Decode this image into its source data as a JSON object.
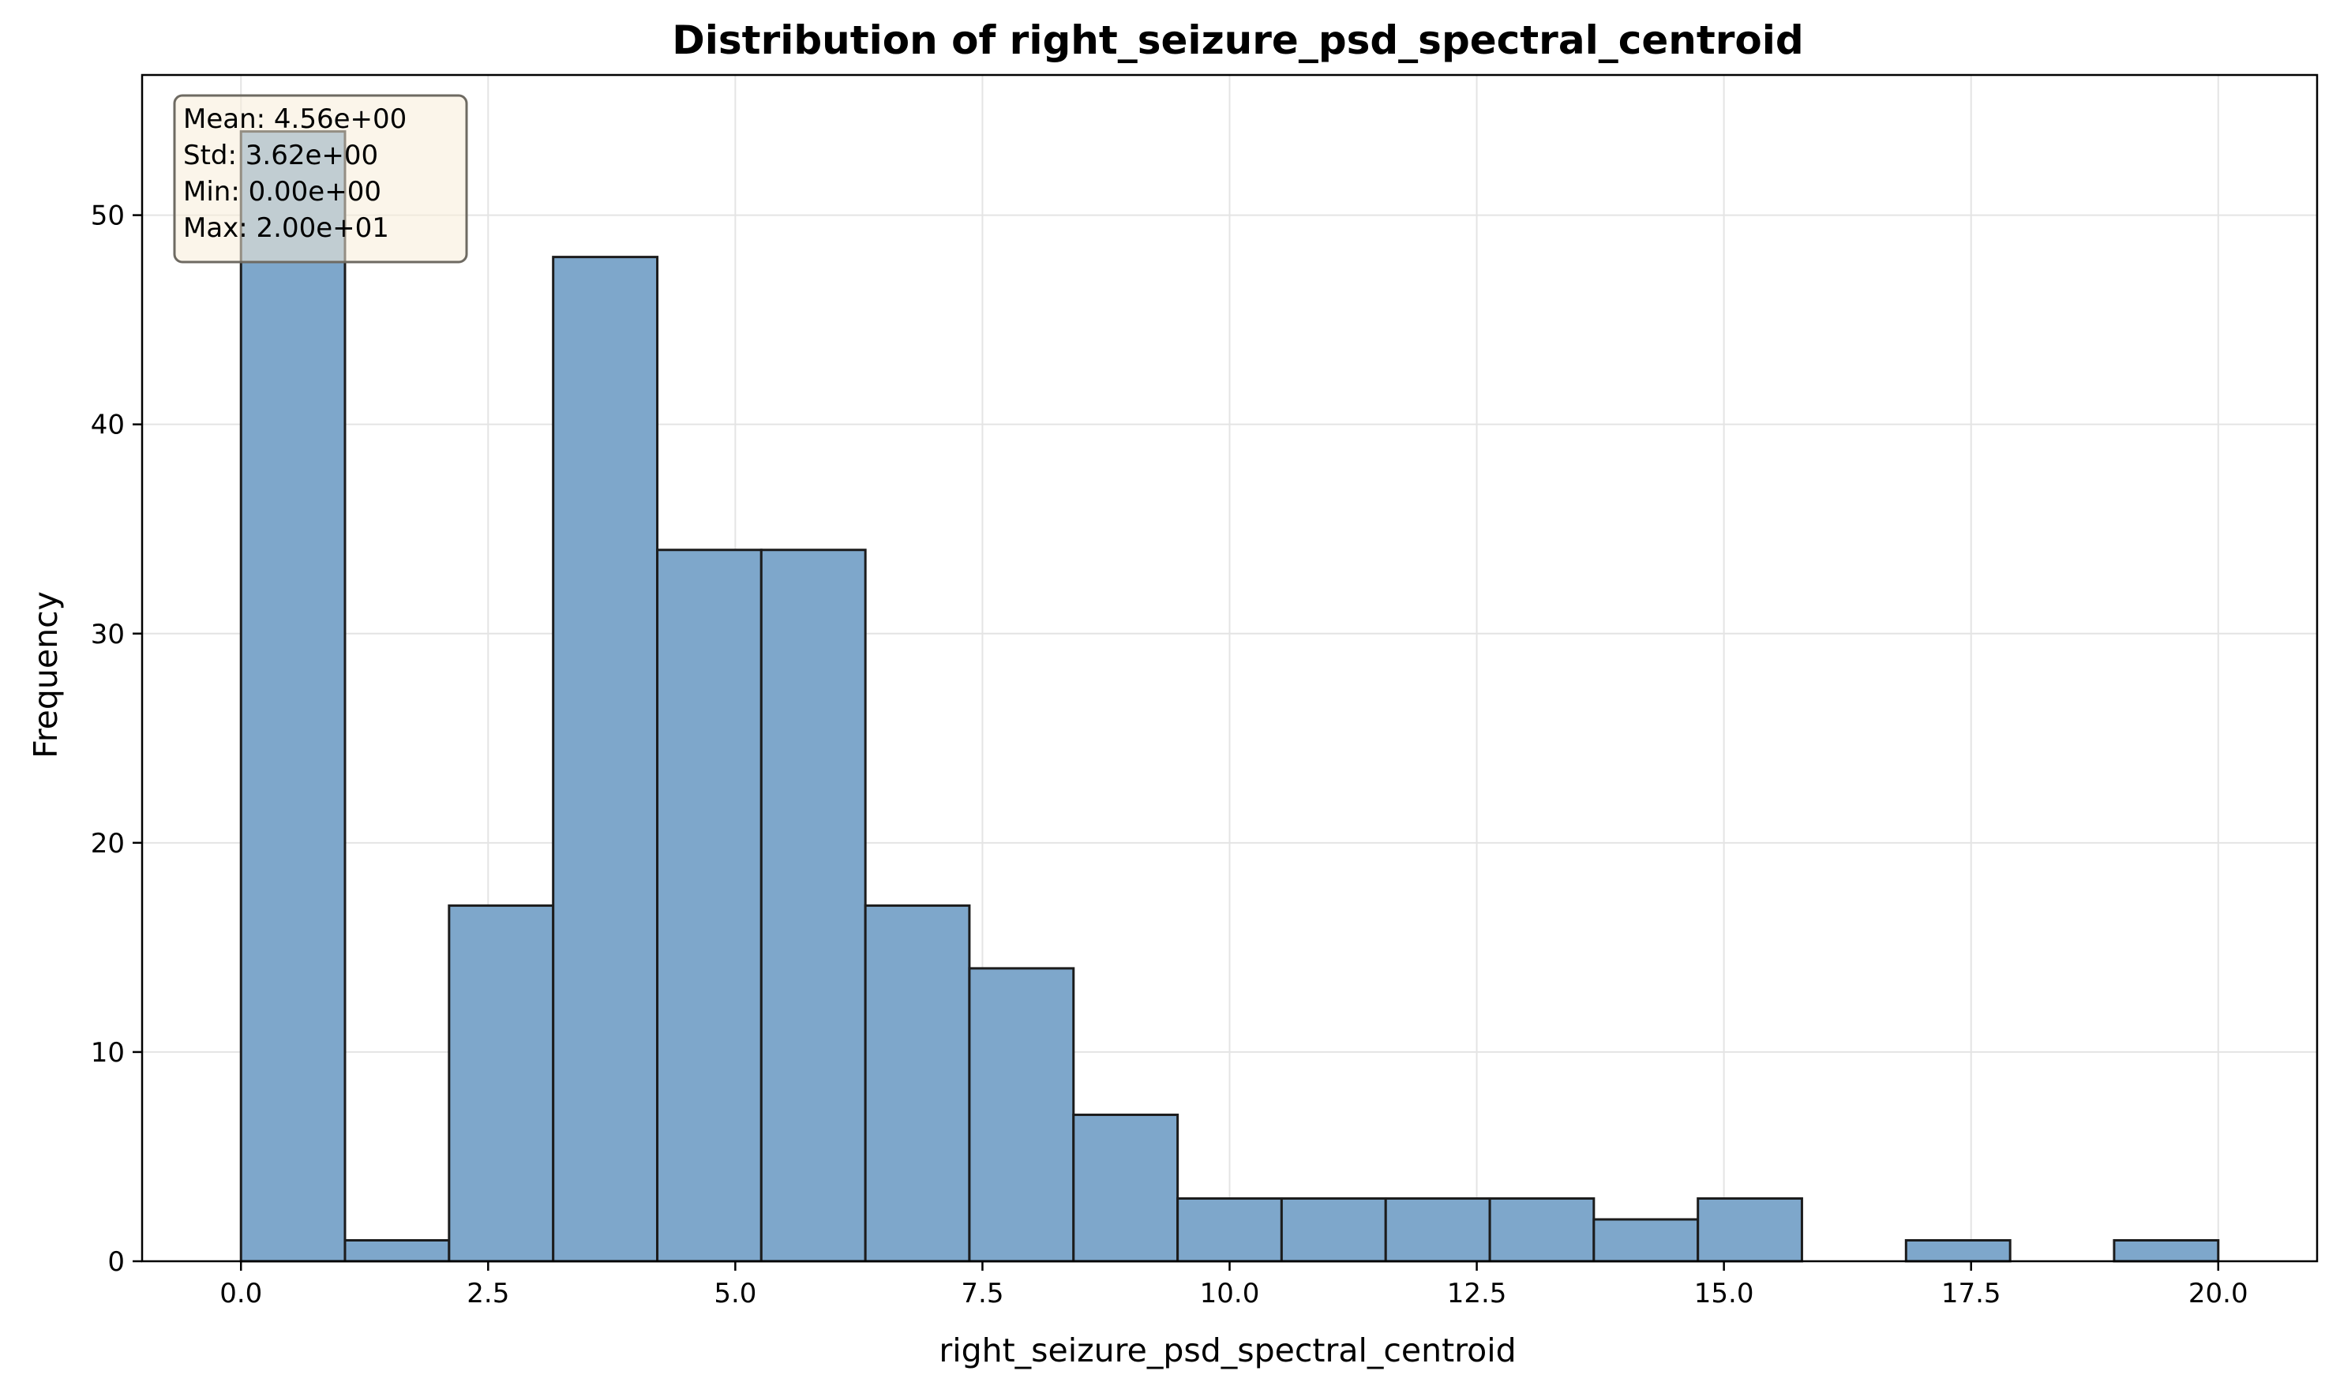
{
  "chart_data": {
    "type": "bar",
    "title": "Distribution of right_seizure_psd_spectral_centroid",
    "xlabel": "right_seizure_psd_spectral_centroid",
    "ylabel": "Frequency",
    "xlim": [
      -1.0,
      21.0
    ],
    "ylim": [
      0,
      56.7
    ],
    "grid": true,
    "bin_edges": [
      0.0,
      1.052,
      2.105,
      3.158,
      4.211,
      5.263,
      6.316,
      7.368,
      8.421,
      9.474,
      10.526,
      11.579,
      12.632,
      13.684,
      14.737,
      15.789,
      16.842,
      17.895,
      18.947,
      20.0
    ],
    "values": [
      54,
      1,
      17,
      48,
      34,
      34,
      17,
      14,
      7,
      3,
      3,
      3,
      3,
      2,
      3,
      0,
      1,
      0,
      1
    ],
    "x_ticks": [
      0.0,
      2.5,
      5.0,
      7.5,
      10.0,
      12.5,
      15.0,
      17.5,
      20.0
    ],
    "x_tick_labels": [
      "0.0",
      "2.5",
      "5.0",
      "7.5",
      "10.0",
      "12.5",
      "15.0",
      "17.5",
      "20.0"
    ],
    "y_ticks": [
      0,
      10,
      20,
      30,
      40,
      50
    ],
    "y_tick_labels": [
      "0",
      "10",
      "20",
      "30",
      "40",
      "50"
    ],
    "stats_box": [
      "Mean: 4.56e+00",
      "Std: 3.62e+00",
      "Min: 0.00e+00",
      "Max: 2.00e+01"
    ],
    "colors": {
      "bar_fill": "#7ea7cb",
      "bar_edge": "#1c1c1c",
      "grid": "#e4e4e4",
      "stats_fill": "#f8ecd8",
      "stats_edge": "#6e6a62"
    }
  }
}
